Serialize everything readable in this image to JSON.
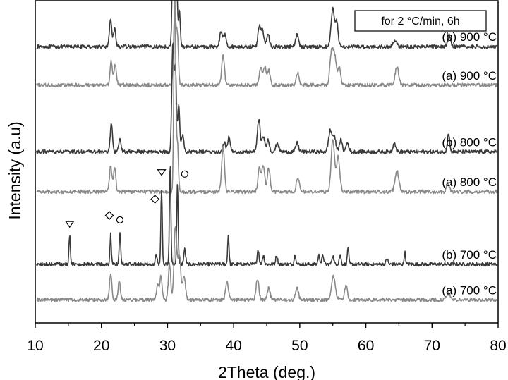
{
  "chart_data": {
    "type": "line",
    "title": "",
    "xlabel": "2Theta (deg.)",
    "ylabel": "Intensity (a.u)",
    "xlim": [
      10,
      80
    ],
    "x_ticks": [
      10,
      20,
      30,
      40,
      50,
      60,
      70,
      80
    ],
    "y_ticks_shown": false,
    "grid": false,
    "box_annotation": "for 2 °C/min, 6h",
    "colors": {
      "b": "#3a3a3a",
      "a": "#8a8a8a"
    },
    "series": [
      {
        "name": "(b) 900 °C",
        "group": "b",
        "baseline": 8.9,
        "peaks": [
          [
            21.4,
            0.9,
            0.25
          ],
          [
            22.0,
            0.6,
            0.25
          ],
          [
            30.9,
            5.6,
            0.22
          ],
          [
            31.3,
            3.0,
            0.22
          ],
          [
            31.8,
            1.2,
            0.2
          ],
          [
            38.1,
            0.5,
            0.3
          ],
          [
            38.7,
            0.4,
            0.3
          ],
          [
            43.9,
            0.7,
            0.3
          ],
          [
            44.4,
            0.5,
            0.3
          ],
          [
            45.2,
            0.4,
            0.3
          ],
          [
            49.6,
            0.4,
            0.3
          ],
          [
            55.0,
            1.3,
            0.35
          ],
          [
            55.6,
            0.8,
            0.3
          ],
          [
            64.4,
            0.2,
            0.4
          ],
          [
            72.6,
            0.4,
            0.3
          ]
        ]
      },
      {
        "name": "(a) 900 °C",
        "group": "a",
        "baseline": 7.6,
        "peaks": [
          [
            21.5,
            0.8,
            0.25
          ],
          [
            22.1,
            0.7,
            0.25
          ],
          [
            31.1,
            2.5,
            0.25
          ],
          [
            31.5,
            1.6,
            0.22
          ],
          [
            38.4,
            1.0,
            0.3
          ],
          [
            44.1,
            0.6,
            0.3
          ],
          [
            44.7,
            0.6,
            0.3
          ],
          [
            45.3,
            0.5,
            0.3
          ],
          [
            49.7,
            0.4,
            0.3
          ],
          [
            54.8,
            1.1,
            0.35
          ],
          [
            55.3,
            0.9,
            0.35
          ],
          [
            56.0,
            0.6,
            0.3
          ],
          [
            64.7,
            0.6,
            0.4
          ]
        ]
      },
      {
        "name": "(b) 800 °C",
        "group": "b",
        "baseline": 5.35,
        "peaks": [
          [
            21.5,
            1.0,
            0.22
          ],
          [
            22.8,
            0.4,
            0.25
          ],
          [
            30.8,
            3.6,
            0.22
          ],
          [
            31.2,
            2.8,
            0.22
          ],
          [
            31.7,
            1.6,
            0.2
          ],
          [
            32.3,
            0.6,
            0.25
          ],
          [
            38.6,
            0.3,
            0.3
          ],
          [
            39.3,
            0.5,
            0.25
          ],
          [
            43.8,
            1.1,
            0.3
          ],
          [
            44.5,
            0.5,
            0.3
          ],
          [
            45.2,
            0.4,
            0.3
          ],
          [
            46.6,
            0.3,
            0.3
          ],
          [
            49.6,
            0.3,
            0.3
          ],
          [
            54.6,
            0.7,
            0.35
          ],
          [
            55.2,
            0.5,
            0.35
          ],
          [
            56.2,
            0.4,
            0.3
          ],
          [
            57.2,
            0.3,
            0.3
          ],
          [
            64.3,
            0.3,
            0.3
          ],
          [
            72.5,
            0.6,
            0.25
          ]
        ]
      },
      {
        "name": "(a) 800 °C",
        "group": "a",
        "baseline": 4.0,
        "peaks": [
          [
            21.4,
            0.9,
            0.25
          ],
          [
            22.0,
            0.8,
            0.25
          ],
          [
            31.1,
            6.7,
            0.2
          ],
          [
            31.5,
            1.6,
            0.2
          ],
          [
            38.4,
            1.5,
            0.3
          ],
          [
            43.9,
            0.8,
            0.3
          ],
          [
            44.5,
            0.9,
            0.3
          ],
          [
            45.3,
            0.8,
            0.3
          ],
          [
            49.7,
            0.5,
            0.3
          ],
          [
            55.0,
            1.8,
            0.35
          ],
          [
            55.8,
            1.2,
            0.35
          ],
          [
            64.7,
            0.7,
            0.4
          ],
          [
            72.4,
            0.3,
            0.3
          ]
        ]
      },
      {
        "name": "(b) 700 °C",
        "group": "b",
        "baseline": 1.55,
        "peaks": [
          [
            15.2,
            1.0,
            0.15
          ],
          [
            21.4,
            1.0,
            0.15
          ],
          [
            22.8,
            1.1,
            0.15
          ],
          [
            28.3,
            0.3,
            0.2
          ],
          [
            29.1,
            2.5,
            0.15
          ],
          [
            30.4,
            3.4,
            0.15
          ],
          [
            31.5,
            2.7,
            0.15
          ],
          [
            32.6,
            0.5,
            0.2
          ],
          [
            39.2,
            1.0,
            0.15
          ],
          [
            43.7,
            0.5,
            0.2
          ],
          [
            44.5,
            0.3,
            0.2
          ],
          [
            46.5,
            0.3,
            0.2
          ],
          [
            49.3,
            0.3,
            0.2
          ],
          [
            52.9,
            0.3,
            0.2
          ],
          [
            53.5,
            0.3,
            0.2
          ],
          [
            55.0,
            0.3,
            0.2
          ],
          [
            56.1,
            0.3,
            0.2
          ],
          [
            57.3,
            0.6,
            0.15
          ],
          [
            63.2,
            0.2,
            0.2
          ],
          [
            65.9,
            0.4,
            0.15
          ]
        ]
      },
      {
        "name": "(a) 700 °C",
        "group": "a",
        "baseline": 0.35,
        "peaks": [
          [
            21.4,
            0.9,
            0.25
          ],
          [
            22.7,
            0.6,
            0.25
          ],
          [
            28.5,
            0.5,
            0.25
          ],
          [
            29.0,
            0.8,
            0.25
          ],
          [
            30.3,
            1.2,
            0.25
          ],
          [
            31.2,
            2.5,
            0.3
          ],
          [
            31.8,
            1.5,
            0.3
          ],
          [
            32.5,
            0.8,
            0.3
          ],
          [
            39.0,
            0.6,
            0.3
          ],
          [
            43.6,
            0.7,
            0.3
          ],
          [
            45.3,
            0.4,
            0.3
          ],
          [
            49.6,
            0.4,
            0.3
          ],
          [
            55.1,
            0.8,
            0.4
          ],
          [
            57.0,
            0.5,
            0.3
          ],
          [
            72.5,
            0.2,
            0.4
          ]
        ]
      }
    ],
    "markers": [
      {
        "shape": "triangle-down",
        "x": 15.2,
        "y": 2.9
      },
      {
        "shape": "diamond",
        "x": 21.2,
        "y": 3.2
      },
      {
        "shape": "circle",
        "x": 22.8,
        "y": 3.05
      },
      {
        "shape": "diamond",
        "x": 28.1,
        "y": 3.75
      },
      {
        "shape": "triangle-down",
        "x": 29.1,
        "y": 4.65
      },
      {
        "shape": "circle",
        "x": 32.6,
        "y": 4.6
      }
    ]
  }
}
